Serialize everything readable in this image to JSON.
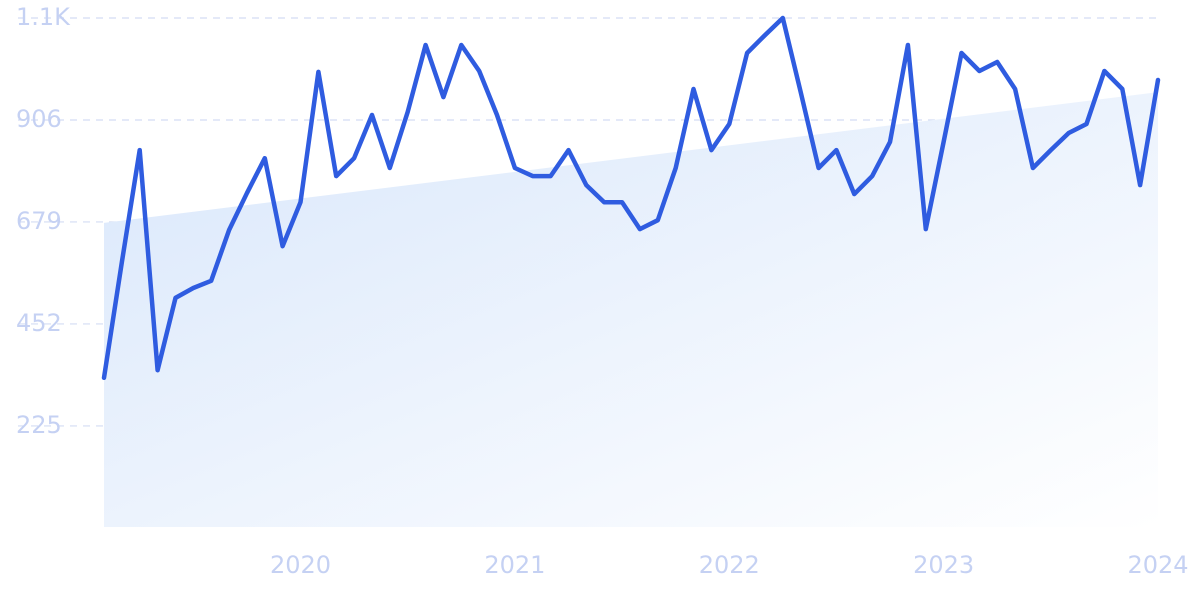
{
  "chart_data": {
    "type": "line",
    "categories": [
      null,
      null,
      null,
      null,
      null,
      null,
      null,
      null,
      null,
      null,
      null,
      "2020",
      null,
      null,
      null,
      null,
      null,
      null,
      null,
      null,
      null,
      null,
      null,
      "2021",
      null,
      null,
      null,
      null,
      null,
      null,
      null,
      null,
      null,
      null,
      null,
      "2022",
      null,
      null,
      null,
      null,
      null,
      null,
      null,
      null,
      null,
      null,
      null,
      "2023",
      null,
      null,
      null,
      null,
      null,
      null,
      null,
      null,
      null,
      null,
      null,
      "2024"
    ],
    "values": [
      332,
      590,
      839,
      349,
      510,
      532,
      548,
      661,
      743,
      821,
      625,
      723,
      1013,
      781,
      821,
      917,
      799,
      924,
      1073,
      957,
      1073,
      1015,
      917,
      799,
      781,
      781,
      839,
      761,
      723,
      723,
      663,
      683,
      799,
      975,
      839,
      897,
      1055,
      1095,
      1133,
      968,
      799,
      839,
      741,
      781,
      857,
      1073,
      663,
      857,
      1055,
      1015,
      1035,
      975,
      799,
      839,
      877,
      897,
      1015,
      975,
      761,
      995
    ],
    "color": "#2f5ce0",
    "trend": [
      677,
      968
    ],
    "ylim": [
      0,
      1133
    ],
    "yticks": [
      225,
      452,
      679,
      906,
      {
        "value": 1133,
        "label": "1.1K"
      }
    ],
    "grid": true
  }
}
